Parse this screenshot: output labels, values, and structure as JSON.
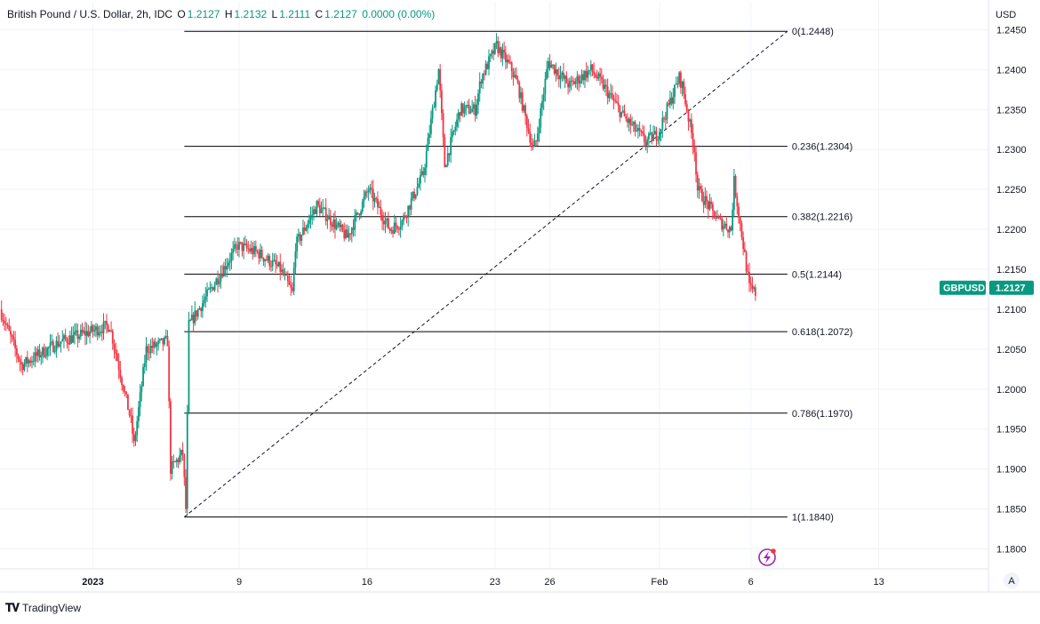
{
  "header": {
    "symbol_title": "British Pound / U.S. Dollar, 2h, IDC",
    "o_label": "O",
    "o_value": "1.2127",
    "h_label": "H",
    "h_value": "1.2132",
    "l_label": "L",
    "l_value": "1.2111",
    "c_label": "C",
    "c_value": "1.2127",
    "change": "0.0000 (0.00%)"
  },
  "currency_label": "USD",
  "price_badge": {
    "symbol": "GBPUSD",
    "price": "1.2127",
    "value": 1.2127
  },
  "auto_scale_label": "A",
  "branding": "TradingView",
  "colors": {
    "up": "#089981",
    "down": "#f23645",
    "fib": "#000000",
    "badge": "#089981"
  },
  "chart_data": {
    "type": "candlestick",
    "ylim": [
      1.1775,
      1.2485
    ],
    "y_ticks": [
      {
        "v": 1.18,
        "label": "1.1800"
      },
      {
        "v": 1.185,
        "label": "1.1850"
      },
      {
        "v": 1.19,
        "label": "1.1900"
      },
      {
        "v": 1.195,
        "label": "1.1950"
      },
      {
        "v": 1.2,
        "label": "1.2000"
      },
      {
        "v": 1.205,
        "label": "1.2050"
      },
      {
        "v": 1.21,
        "label": "1.2100"
      },
      {
        "v": 1.215,
        "label": "1.2150"
      },
      {
        "v": 1.22,
        "label": "1.2200"
      },
      {
        "v": 1.225,
        "label": "1.2250"
      },
      {
        "v": 1.23,
        "label": "1.2300"
      },
      {
        "v": 1.235,
        "label": "1.2350"
      },
      {
        "v": 1.24,
        "label": "1.2400"
      },
      {
        "v": 1.245,
        "label": "1.2450"
      }
    ],
    "x_ticks": [
      {
        "date": "2023-01-01",
        "label": "2023",
        "bold": true
      },
      {
        "date": "2023-01-09",
        "label": "9"
      },
      {
        "date": "2023-01-16",
        "label": "16"
      },
      {
        "date": "2023-01-23",
        "label": "23"
      },
      {
        "date": "2023-01-26",
        "label": "26"
      },
      {
        "date": "2023-02-01",
        "label": "Feb"
      },
      {
        "date": "2023-02-06",
        "label": "6"
      },
      {
        "date": "2023-02-13",
        "label": "13"
      }
    ],
    "grid": true,
    "fib_retracement": {
      "start_date": "2023-01-06",
      "end_date": "2023-02-08",
      "levels": [
        {
          "ratio": "0",
          "price": 1.2448,
          "label": "0(1.2448)"
        },
        {
          "ratio": "0.236",
          "price": 1.2304,
          "label": "0.236(1.2304)"
        },
        {
          "ratio": "0.382",
          "price": 1.2216,
          "label": "0.382(1.2216)"
        },
        {
          "ratio": "0.5",
          "price": 1.2144,
          "label": "0.5(1.2144)"
        },
        {
          "ratio": "0.618",
          "price": 1.2072,
          "label": "0.618(1.2072)"
        },
        {
          "ratio": "0.786",
          "price": 1.197,
          "label": "0.786(1.1970)"
        },
        {
          "ratio": "1",
          "price": 1.184,
          "label": "1(1.1840)"
        }
      ],
      "trend_line": {
        "from_date": "2023-01-06",
        "from_price": 1.184,
        "to_date": "2023-02-08",
        "to_price": 1.2448
      }
    },
    "anchors": [
      {
        "date": "2022-12-27",
        "price": 1.21
      },
      {
        "date": "2022-12-28",
        "price": 1.203
      },
      {
        "date": "2022-12-30",
        "price": 1.206
      },
      {
        "date": "2023-01-02",
        "price": 1.208
      },
      {
        "date": "2023-01-03",
        "price": 1.196
      },
      {
        "date": "2023-01-03",
        "price": 1.193
      },
      {
        "date": "2023-01-04",
        "price": 1.205
      },
      {
        "date": "2023-01-05",
        "price": 1.206
      },
      {
        "date": "2023-01-05",
        "price": 1.19
      },
      {
        "date": "2023-01-06",
        "price": 1.192
      },
      {
        "date": "2023-01-06",
        "price": 1.185
      },
      {
        "date": "2023-01-06",
        "price": 1.208
      },
      {
        "date": "2023-01-09",
        "price": 1.218
      },
      {
        "date": "2023-01-10",
        "price": 1.217
      },
      {
        "date": "2023-01-11",
        "price": 1.215
      },
      {
        "date": "2023-01-12",
        "price": 1.212
      },
      {
        "date": "2023-01-12",
        "price": 1.218
      },
      {
        "date": "2023-01-13",
        "price": 1.223
      },
      {
        "date": "2023-01-15",
        "price": 1.219
      },
      {
        "date": "2023-01-16",
        "price": 1.225
      },
      {
        "date": "2023-01-17",
        "price": 1.22
      },
      {
        "date": "2023-01-18",
        "price": 1.221
      },
      {
        "date": "2023-01-19",
        "price": 1.227
      },
      {
        "date": "2023-01-20",
        "price": 1.228
      },
      {
        "date": "2023-01-20",
        "price": 1.24
      },
      {
        "date": "2023-01-21",
        "price": 1.235
      },
      {
        "date": "2023-01-22",
        "price": 1.239
      },
      {
        "date": "2023-01-22",
        "price": 1.235
      },
      {
        "date": "2023-01-23",
        "price": 1.243
      },
      {
        "date": "2023-01-24",
        "price": 1.238
      },
      {
        "date": "2023-01-24",
        "price": 1.24
      },
      {
        "date": "2023-01-25",
        "price": 1.23
      },
      {
        "date": "2023-01-25",
        "price": 1.231
      },
      {
        "date": "2023-01-26",
        "price": 1.241
      },
      {
        "date": "2023-01-27",
        "price": 1.238
      },
      {
        "date": "2023-01-28",
        "price": 1.24
      },
      {
        "date": "2023-01-29",
        "price": 1.238
      },
      {
        "date": "2023-01-30",
        "price": 1.234
      },
      {
        "date": "2023-01-31",
        "price": 1.231
      },
      {
        "date": "2023-02-01",
        "price": 1.232
      },
      {
        "date": "2023-02-02",
        "price": 1.239
      },
      {
        "date": "2023-02-02",
        "price": 1.238
      },
      {
        "date": "2023-02-03",
        "price": 1.23
      },
      {
        "date": "2023-02-03",
        "price": 1.225
      },
      {
        "date": "2023-02-04",
        "price": 1.221
      },
      {
        "date": "2023-02-05",
        "price": 1.22
      },
      {
        "date": "2023-02-05",
        "price": 1.226
      },
      {
        "date": "2023-02-06",
        "price": 1.212
      },
      {
        "date": "2023-02-06",
        "price": 1.2127
      }
    ]
  }
}
